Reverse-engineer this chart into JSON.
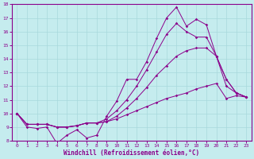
{
  "xlabel": "Windchill (Refroidissement éolien,°C)",
  "background_color": "#c5ecee",
  "line_color": "#8b008b",
  "grid_color": "#a8d8dc",
  "xlim": [
    -0.5,
    23.5
  ],
  "ylim": [
    8,
    18
  ],
  "xticks": [
    0,
    1,
    2,
    3,
    4,
    5,
    6,
    7,
    8,
    9,
    10,
    11,
    12,
    13,
    14,
    15,
    16,
    17,
    18,
    19,
    20,
    21,
    22,
    23
  ],
  "yticks": [
    8,
    9,
    10,
    11,
    12,
    13,
    14,
    15,
    16,
    17,
    18
  ],
  "series_a": [
    10.0,
    9.0,
    8.9,
    9.0,
    7.8,
    8.4,
    8.8,
    8.2,
    8.4,
    9.8,
    10.9,
    12.5,
    12.5,
    13.8,
    15.5,
    17.0,
    17.8,
    16.4,
    16.9,
    16.5,
    14.2,
    12.0,
    11.5,
    11.2
  ],
  "series_b": [
    10.0,
    9.2,
    9.2,
    9.2,
    9.0,
    9.0,
    9.1,
    9.3,
    9.3,
    9.4,
    9.6,
    9.9,
    10.2,
    10.5,
    10.8,
    11.1,
    11.3,
    11.5,
    11.8,
    12.0,
    12.2,
    11.1,
    11.3,
    11.2
  ],
  "series_c": [
    10.0,
    9.2,
    9.2,
    9.2,
    9.0,
    9.0,
    9.1,
    9.3,
    9.3,
    9.4,
    9.8,
    10.4,
    11.1,
    11.9,
    12.8,
    13.5,
    14.2,
    14.6,
    14.8,
    14.8,
    14.2,
    12.5,
    11.5,
    11.2
  ],
  "series_d": [
    10.0,
    9.2,
    9.2,
    9.2,
    9.0,
    9.0,
    9.1,
    9.3,
    9.3,
    9.6,
    10.2,
    11.0,
    12.0,
    13.2,
    14.5,
    15.8,
    16.6,
    16.0,
    15.6,
    15.6,
    14.2,
    12.5,
    11.5,
    11.2
  ]
}
